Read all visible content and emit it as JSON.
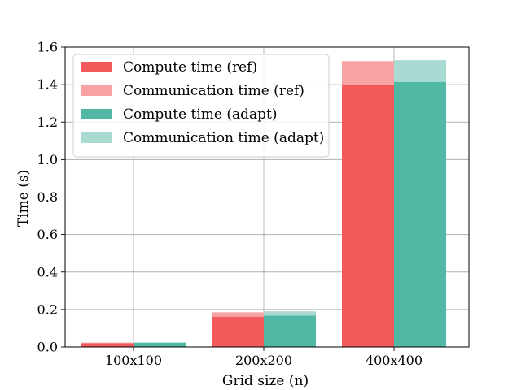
{
  "chart_data": {
    "type": "bar",
    "stacked": true,
    "grouped": true,
    "categories": [
      "100x100",
      "200x200",
      "400x400"
    ],
    "xlabel": "Grid size (n)",
    "ylabel": "Time (s)",
    "ylim": [
      0,
      1.6
    ],
    "yticks": [
      "0.0",
      "0.2",
      "0.4",
      "0.6",
      "0.8",
      "1.0",
      "1.2",
      "1.4",
      "1.6"
    ],
    "grid": true,
    "legend_position": "top-left",
    "groups": [
      {
        "name": "ref",
        "segments": [
          {
            "name": "Compute time (ref)",
            "color": "#f05a5a",
            "values": [
              0.02,
              0.162,
              1.4
            ]
          },
          {
            "name": "Communication time (ref)",
            "color": "#f7a3a3",
            "values": [
              0.003,
              0.023,
              0.125
            ]
          }
        ]
      },
      {
        "name": "adapt",
        "segments": [
          {
            "name": "Compute time (adapt)",
            "color": "#52b8a6",
            "values": [
              0.022,
              0.168,
              1.415
            ]
          },
          {
            "name": "Communication time (adapt)",
            "color": "#a9dbd2",
            "values": [
              0.003,
              0.022,
              0.115
            ]
          }
        ]
      }
    ]
  }
}
